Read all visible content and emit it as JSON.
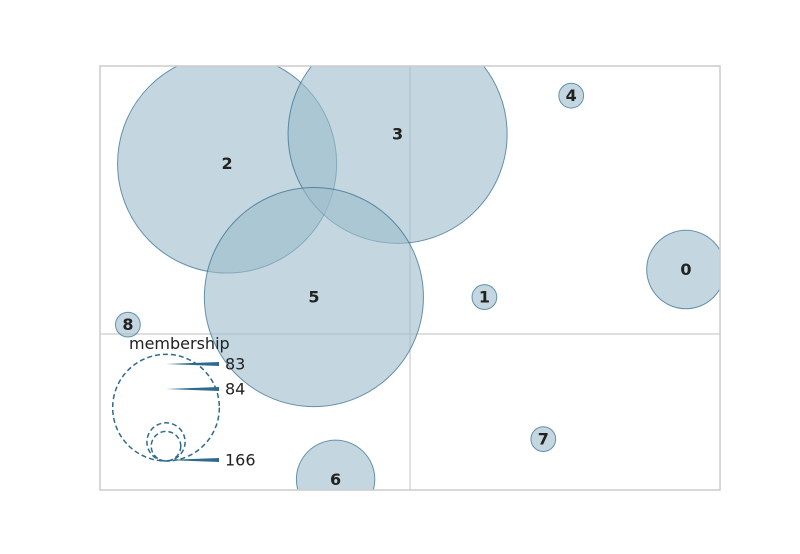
{
  "chart_data": {
    "type": "bubble",
    "title": "",
    "xlabel": "",
    "ylabel": "",
    "xlim": [
      -1,
      1
    ],
    "ylim": [
      -1,
      1
    ],
    "grid": "center-crosshair",
    "points": [
      {
        "label": "0",
        "x": 0.89,
        "y": 0.04,
        "size": 20
      },
      {
        "label": "1",
        "x": 0.24,
        "y": -0.09,
        "size": 2
      },
      {
        "label": "2",
        "x": -0.59,
        "y": 0.54,
        "size": 156
      },
      {
        "label": "3",
        "x": -0.04,
        "y": 0.68,
        "size": 156
      },
      {
        "label": "4",
        "x": 0.52,
        "y": 0.86,
        "size": 2
      },
      {
        "label": "5",
        "x": -0.31,
        "y": -0.09,
        "size": 156
      },
      {
        "label": "6",
        "x": -0.24,
        "y": -0.95,
        "size": 20
      },
      {
        "label": "7",
        "x": 0.43,
        "y": -0.76,
        "size": 2
      },
      {
        "label": "8",
        "x": -0.91,
        "y": -0.22,
        "size": 2
      }
    ],
    "legend": {
      "title": "membership",
      "placement": "bottom-left",
      "entries": [
        {
          "label": "83",
          "size": 12
        },
        {
          "label": "84",
          "size": 20
        },
        {
          "label": "166",
          "size": 156
        }
      ]
    },
    "colors": {
      "bubble_fill": "#9dbccc",
      "bubble_stroke": "#2e6a8c",
      "legend_stroke": "#2e6a8c",
      "grid": "#cccccc",
      "frame": "#cccccc",
      "text": "#222222"
    }
  }
}
